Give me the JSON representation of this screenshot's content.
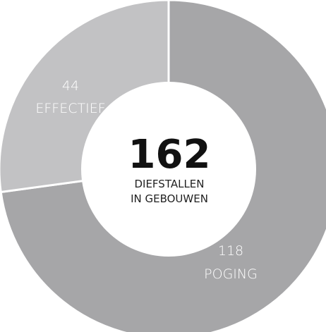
{
  "chart_data": {
    "type": "pie",
    "style": "donut",
    "center": {
      "total": "162",
      "line1": "DIEFSTALLEN",
      "line2": "IN GEBOUWEN"
    },
    "slices": [
      {
        "label": "POGING",
        "value": 118,
        "value_text": "118",
        "color": "#a6a6a8"
      },
      {
        "label": "EFFECTIEF",
        "value": 44,
        "value_text": "44",
        "color": "#c2c2c4"
      }
    ]
  }
}
